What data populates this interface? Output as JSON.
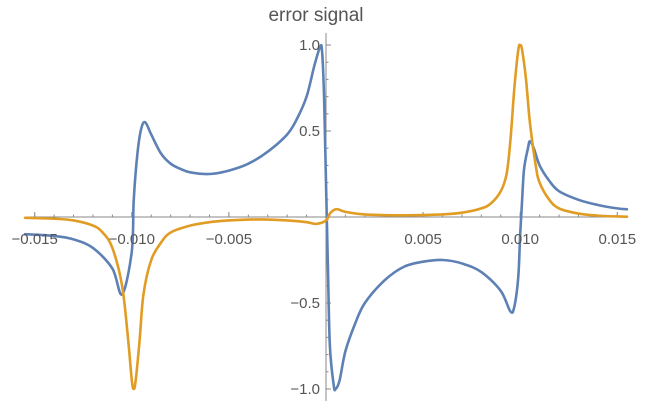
{
  "chart_data": {
    "type": "line",
    "title": "error signal",
    "xlabel": "",
    "ylabel": "",
    "xlim": [
      -0.0155,
      0.0155
    ],
    "ylim": [
      -1.07,
      1.07
    ],
    "grid": false,
    "x_ticks": [
      -0.015,
      -0.01,
      -0.005,
      0.005,
      0.01,
      0.015
    ],
    "x_tick_labels": [
      "-0.015",
      "-0.010",
      "-0.005",
      "0.005",
      "0.010",
      "0.015"
    ],
    "x_minor_step": 0.001,
    "y_ticks": [
      -1.0,
      -0.5,
      0.5,
      1.0
    ],
    "y_tick_labels": [
      "-1.0",
      "-0.5",
      "0.5",
      "1.0"
    ],
    "y_minor_step": 0.1,
    "series": [
      {
        "color": "#5E81B5",
        "points": [
          [
            -0.0155,
            -0.1
          ],
          [
            -0.014,
            -0.11
          ],
          [
            -0.013,
            -0.13
          ],
          [
            -0.012,
            -0.18
          ],
          [
            -0.011,
            -0.3
          ],
          [
            -0.0105,
            -0.45
          ],
          [
            -0.01,
            -0.2
          ],
          [
            -0.0099,
            0.1
          ],
          [
            -0.0097,
            0.38
          ],
          [
            -0.0095,
            0.52
          ],
          [
            -0.0093,
            0.55
          ],
          [
            -0.009,
            0.48
          ],
          [
            -0.0085,
            0.37
          ],
          [
            -0.008,
            0.31
          ],
          [
            -0.0075,
            0.28
          ],
          [
            -0.007,
            0.26
          ],
          [
            -0.006,
            0.25
          ],
          [
            -0.005,
            0.27
          ],
          [
            -0.004,
            0.31
          ],
          [
            -0.003,
            0.38
          ],
          [
            -0.002,
            0.48
          ],
          [
            -0.0015,
            0.57
          ],
          [
            -0.001,
            0.7
          ],
          [
            -0.0006,
            0.88
          ],
          [
            -0.0003,
            0.99
          ],
          [
            -0.0002,
            0.96
          ],
          [
            -0.0001,
            0.7
          ],
          [
            0.0,
            0.2
          ],
          [
            0.0001,
            -0.3
          ],
          [
            0.0002,
            -0.75
          ],
          [
            0.0004,
            -0.98
          ],
          [
            0.0005,
            -1.0
          ],
          [
            0.0007,
            -0.95
          ],
          [
            0.001,
            -0.78
          ],
          [
            0.0015,
            -0.62
          ],
          [
            0.002,
            -0.5
          ],
          [
            0.003,
            -0.37
          ],
          [
            0.004,
            -0.29
          ],
          [
            0.005,
            -0.26
          ],
          [
            0.006,
            -0.25
          ],
          [
            0.007,
            -0.27
          ],
          [
            0.008,
            -0.32
          ],
          [
            0.009,
            -0.43
          ],
          [
            0.0095,
            -0.55
          ],
          [
            0.0097,
            -0.52
          ],
          [
            0.0099,
            -0.35
          ],
          [
            0.01,
            -0.1
          ],
          [
            0.0101,
            0.1
          ],
          [
            0.0102,
            0.28
          ],
          [
            0.0104,
            0.4
          ],
          [
            0.0105,
            0.44
          ],
          [
            0.0107,
            0.4
          ],
          [
            0.011,
            0.3
          ],
          [
            0.0115,
            0.21
          ],
          [
            0.012,
            0.15
          ],
          [
            0.013,
            0.1
          ],
          [
            0.014,
            0.07
          ],
          [
            0.015,
            0.05
          ],
          [
            0.0155,
            0.045
          ]
        ]
      },
      {
        "color": "#E19C24",
        "points": [
          [
            -0.0155,
            -0.005
          ],
          [
            -0.014,
            -0.01
          ],
          [
            -0.013,
            -0.02
          ],
          [
            -0.012,
            -0.05
          ],
          [
            -0.0115,
            -0.09
          ],
          [
            -0.011,
            -0.18
          ],
          [
            -0.0105,
            -0.4
          ],
          [
            -0.0102,
            -0.7
          ],
          [
            -0.01,
            -0.95
          ],
          [
            -0.0099,
            -1.0
          ],
          [
            -0.0098,
            -0.95
          ],
          [
            -0.0096,
            -0.72
          ],
          [
            -0.0094,
            -0.45
          ],
          [
            -0.009,
            -0.25
          ],
          [
            -0.0085,
            -0.15
          ],
          [
            -0.008,
            -0.09
          ],
          [
            -0.007,
            -0.05
          ],
          [
            -0.006,
            -0.03
          ],
          [
            -0.005,
            -0.02
          ],
          [
            -0.004,
            -0.015
          ],
          [
            -0.003,
            -0.015
          ],
          [
            -0.002,
            -0.02
          ],
          [
            -0.001,
            -0.03
          ],
          [
            -0.0005,
            -0.04
          ],
          [
            0.0,
            -0.02
          ],
          [
            0.0002,
            0.02
          ],
          [
            0.0004,
            0.04
          ],
          [
            0.0006,
            0.045
          ],
          [
            0.001,
            0.03
          ],
          [
            0.002,
            0.015
          ],
          [
            0.004,
            0.01
          ],
          [
            0.006,
            0.015
          ],
          [
            0.007,
            0.025
          ],
          [
            0.008,
            0.05
          ],
          [
            0.0085,
            0.08
          ],
          [
            0.009,
            0.15
          ],
          [
            0.0093,
            0.25
          ],
          [
            0.0095,
            0.45
          ],
          [
            0.0097,
            0.75
          ],
          [
            0.0099,
            0.97
          ],
          [
            0.01,
            1.0
          ],
          [
            0.0101,
            0.97
          ],
          [
            0.0103,
            0.8
          ],
          [
            0.0105,
            0.55
          ],
          [
            0.0108,
            0.3
          ],
          [
            0.011,
            0.2
          ],
          [
            0.0115,
            0.1
          ],
          [
            0.012,
            0.05
          ],
          [
            0.013,
            0.02
          ],
          [
            0.014,
            0.008
          ],
          [
            0.015,
            0.003
          ],
          [
            0.0155,
            0.002
          ]
        ]
      }
    ]
  }
}
